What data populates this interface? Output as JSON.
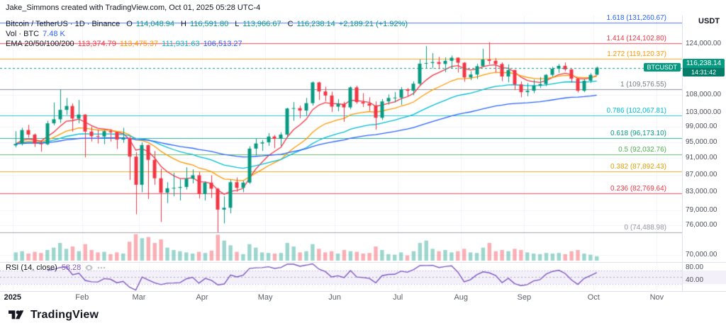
{
  "attribution": "Jake_Simmons created with TradingView.com, Oct 01, 2025 05:28 UTC-4",
  "header": {
    "symbol_title": "Bitcoin / TetherUS · 1D · Binance",
    "ohlc": {
      "o_label": "O",
      "o": "114,048.94",
      "h_label": "H",
      "h": "116,591.80",
      "l_label": "L",
      "l": "113,966.67",
      "c_label": "C",
      "c": "116,238.14"
    },
    "change": "+2,189.21 (+1.92%)",
    "volume_label": "Vol · BTC",
    "volume_value": "7.48 K",
    "ema_label": "EMA 20/50/100/200",
    "ema_values": [
      "113,374.79",
      "113,475.37",
      "111,931.63",
      "106,513.27"
    ]
  },
  "last_price": {
    "symbol_badge": "BTCUSDT",
    "price": "116,238.14",
    "countdown": "14:31:42",
    "value": 116238.14,
    "color": "#089981"
  },
  "price_axis": {
    "unit": "USDT",
    "ticks": [
      {
        "label": "124,000.00",
        "value": 124000
      },
      {
        "label": "108,000.00",
        "value": 108000
      },
      {
        "label": "103,000.00",
        "value": 103000
      },
      {
        "label": "99,000.00",
        "value": 99000
      },
      {
        "label": "95,000.00",
        "value": 95000
      },
      {
        "label": "91,000.00",
        "value": 91000
      },
      {
        "label": "87,000.00",
        "value": 87000
      },
      {
        "label": "83,000.00",
        "value": 83000
      },
      {
        "label": "79,000.00",
        "value": 79000
      },
      {
        "label": "76,000.00",
        "value": 76000
      },
      {
        "label": "70,000.00",
        "value": 70000
      }
    ]
  },
  "fib_levels": [
    {
      "label": "1.618 (131,260.67)",
      "value": 131260.67,
      "color": "#2962ff"
    },
    {
      "label": "1.414 (124,102.80)",
      "value": 124102.8,
      "color": "#f23645"
    },
    {
      "label": "1.272 (119,120.37)",
      "value": 119120.37,
      "color": "#ff9800"
    },
    {
      "label": "1 (109,576.55)",
      "value": 109576.55,
      "color": "#787b86"
    },
    {
      "label": "0.786 (102,067.81)",
      "value": 102067.81,
      "color": "#00bcd4"
    },
    {
      "label": "0.618 (96,173.10)",
      "value": 96173.1,
      "color": "#089981"
    },
    {
      "label": "0.5 (92,032.76)",
      "value": 92032.76,
      "color": "#4caf50"
    },
    {
      "label": "0.382 (87,892.43)",
      "value": 87892.43,
      "color": "#e3a008"
    },
    {
      "label": "0.236 (82,769.64)",
      "value": 82769.64,
      "color": "#f23645"
    },
    {
      "label": "0 (74,488.98)",
      "value": 74488.98,
      "color": "#9598a1"
    }
  ],
  "rsi": {
    "label": "RSI (14, close)",
    "value": "58.28",
    "color": "#7e57c2",
    "band": [
      30,
      70
    ],
    "axis_ticks": [
      {
        "label": "80.00",
        "value": 80
      },
      {
        "label": "40.00",
        "value": 40
      }
    ]
  },
  "time_axis": {
    "labels": [
      {
        "text": "2025",
        "slot": 2,
        "year": true
      },
      {
        "text": "Feb",
        "slot": 13
      },
      {
        "text": "Mar",
        "slot": 22
      },
      {
        "text": "Apr",
        "slot": 32
      },
      {
        "text": "May",
        "slot": 42
      },
      {
        "text": "Jun",
        "slot": 53
      },
      {
        "text": "Jul",
        "slot": 63
      },
      {
        "text": "Aug",
        "slot": 73
      },
      {
        "text": "Sep",
        "slot": 83
      },
      {
        "text": "Oct",
        "slot": 94
      },
      {
        "text": "Nov",
        "slot": 104
      }
    ]
  },
  "footer": {
    "brand": "TradingView"
  },
  "chart_data": {
    "type": "candlestick",
    "symbol": "BTCUSDT",
    "exchange": "Binance",
    "interval": "1D",
    "price_scale": "log",
    "price_range": [
      69000,
      133800
    ],
    "units": "thousand USDT per candle value; volume in K BTC",
    "total_slots": 108,
    "first_candle_slot": 2,
    "volume_max": 48,
    "bar_compression": 3,
    "up_color": "#089981",
    "down_color": "#f23645",
    "ema": {
      "periods": [
        20,
        50,
        100,
        200
      ],
      "colors": [
        "#f23645",
        "#ff9800",
        "#00bcd4",
        "#2962ff"
      ]
    },
    "rsi_period": 14,
    "candles": [
      [
        94.2,
        97.9,
        93.7,
        94.6,
        14
      ],
      [
        94.6,
        98.8,
        94.2,
        98.2,
        16
      ],
      [
        98.2,
        99.6,
        96.2,
        97.0,
        12
      ],
      [
        97.0,
        97.3,
        93.8,
        94.7,
        15
      ],
      [
        94.7,
        95.4,
        92.6,
        94.5,
        13
      ],
      [
        94.5,
        100.7,
        94.3,
        100.0,
        18
      ],
      [
        100.0,
        105.8,
        99.5,
        101.1,
        22
      ],
      [
        101.1,
        109.6,
        100.1,
        103.7,
        30
      ],
      [
        103.7,
        107.1,
        102.3,
        104.8,
        20
      ],
      [
        104.8,
        105.5,
        97.8,
        101.3,
        24
      ],
      [
        101.3,
        106.5,
        100.0,
        102.4,
        16
      ],
      [
        102.4,
        102.5,
        91.2,
        97.8,
        28
      ],
      [
        97.8,
        99.1,
        95.2,
        96.6,
        18
      ],
      [
        96.6,
        98.3,
        94.7,
        96.5,
        14
      ],
      [
        96.5,
        98.1,
        94.5,
        97.9,
        15
      ],
      [
        97.9,
        98.4,
        95.2,
        97.6,
        11
      ],
      [
        97.6,
        97.7,
        93.3,
        95.7,
        14
      ],
      [
        95.7,
        98.8,
        94.9,
        96.1,
        12
      ],
      [
        96.1,
        96.5,
        85.8,
        91.4,
        32
      ],
      [
        91.4,
        92.5,
        78.2,
        84.7,
        45
      ],
      [
        84.7,
        95.0,
        83.0,
        94.3,
        38
      ],
      [
        94.3,
        94.4,
        81.5,
        90.6,
        40
      ],
      [
        90.6,
        92.8,
        84.7,
        86.2,
        30
      ],
      [
        86.2,
        88.5,
        76.6,
        82.9,
        36
      ],
      [
        82.9,
        85.3,
        80.6,
        83.9,
        22
      ],
      [
        83.9,
        87.5,
        82.1,
        84.0,
        18
      ],
      [
        84.0,
        86.0,
        81.2,
        84.2,
        16
      ],
      [
        84.2,
        88.8,
        83.6,
        86.1,
        14
      ],
      [
        86.1,
        88.3,
        85.0,
        86.9,
        12
      ],
      [
        86.9,
        87.7,
        81.6,
        82.6,
        15
      ],
      [
        82.6,
        85.5,
        81.2,
        85.2,
        13
      ],
      [
        85.2,
        86.9,
        81.7,
        83.8,
        17
      ],
      [
        83.8,
        84.0,
        74.5,
        79.2,
        44
      ],
      [
        79.2,
        82.1,
        76.3,
        79.6,
        34
      ],
      [
        79.6,
        85.8,
        78.4,
        85.3,
        26
      ],
      [
        85.3,
        86.4,
        83.1,
        84.0,
        15
      ],
      [
        84.0,
        85.6,
        83.0,
        85.2,
        11
      ],
      [
        85.2,
        94.0,
        84.9,
        93.4,
        28
      ],
      [
        93.4,
        95.9,
        91.7,
        94.7,
        22
      ],
      [
        94.7,
        95.6,
        92.8,
        95.0,
        14
      ],
      [
        95.0,
        97.4,
        94.1,
        96.5,
        13
      ],
      [
        96.5,
        96.9,
        93.5,
        95.9,
        12
      ],
      [
        95.9,
        97.6,
        94.1,
        97.0,
        13
      ],
      [
        97.0,
        104.3,
        96.4,
        104.1,
        30
      ],
      [
        104.1,
        105.9,
        100.7,
        104.2,
        24
      ],
      [
        104.2,
        104.9,
        101.4,
        103.5,
        14
      ],
      [
        103.5,
        107.1,
        102.1,
        105.6,
        16
      ],
      [
        105.6,
        112.0,
        104.9,
        111.7,
        28
      ],
      [
        111.7,
        111.9,
        106.5,
        109.0,
        20
      ],
      [
        109.0,
        110.4,
        106.1,
        107.8,
        14
      ],
      [
        107.8,
        108.9,
        103.1,
        104.6,
        16
      ],
      [
        104.6,
        106.8,
        103.3,
        105.4,
        12
      ],
      [
        105.4,
        106.0,
        100.4,
        104.4,
        18
      ],
      [
        104.4,
        110.5,
        103.9,
        110.2,
        16
      ],
      [
        110.2,
        110.7,
        105.4,
        105.9,
        15
      ],
      [
        105.9,
        108.5,
        104.5,
        105.5,
        12
      ],
      [
        105.5,
        107.3,
        103.4,
        104.9,
        13
      ],
      [
        104.9,
        106.1,
        98.3,
        101.5,
        24
      ],
      [
        101.5,
        106.8,
        100.9,
        106.1,
        18
      ],
      [
        106.1,
        108.1,
        105.2,
        107.1,
        11
      ],
      [
        107.1,
        108.8,
        105.8,
        107.2,
        10
      ],
      [
        107.2,
        110.3,
        105.1,
        109.6,
        14
      ],
      [
        109.6,
        110.0,
        107.5,
        109.2,
        9
      ],
      [
        109.2,
        112.0,
        107.9,
        111.3,
        16
      ],
      [
        111.3,
        118.9,
        110.9,
        117.5,
        30
      ],
      [
        117.5,
        123.2,
        116.1,
        117.7,
        34
      ],
      [
        117.7,
        120.9,
        116.0,
        118.0,
        20
      ],
      [
        118.0,
        119.7,
        115.8,
        117.4,
        16
      ],
      [
        117.4,
        119.5,
        114.8,
        118.4,
        18
      ],
      [
        118.4,
        120.1,
        116.0,
        119.4,
        14
      ],
      [
        119.4,
        119.5,
        114.7,
        117.8,
        16
      ],
      [
        117.8,
        118.0,
        111.9,
        113.2,
        20
      ],
      [
        113.2,
        115.1,
        112.4,
        114.1,
        14
      ],
      [
        114.1,
        117.5,
        112.7,
        116.7,
        13
      ],
      [
        116.7,
        122.3,
        116.5,
        118.8,
        22
      ],
      [
        118.8,
        124.5,
        117.3,
        118.4,
        30
      ],
      [
        118.4,
        119.3,
        114.8,
        117.4,
        16
      ],
      [
        117.4,
        117.9,
        112.1,
        113.5,
        18
      ],
      [
        113.5,
        117.3,
        111.7,
        115.5,
        16
      ],
      [
        115.5,
        115.6,
        109.4,
        111.1,
        20
      ],
      [
        111.1,
        112.0,
        107.3,
        108.8,
        18
      ],
      [
        108.8,
        111.5,
        107.6,
        109.2,
        14
      ],
      [
        109.2,
        112.6,
        108.5,
        110.7,
        12
      ],
      [
        110.7,
        113.3,
        110.0,
        111.2,
        11
      ],
      [
        111.2,
        114.2,
        110.6,
        114.0,
        13
      ],
      [
        114.0,
        116.5,
        113.4,
        115.9,
        12
      ],
      [
        115.9,
        117.4,
        114.6,
        116.8,
        13
      ],
      [
        116.8,
        117.9,
        115.1,
        115.7,
        11
      ],
      [
        115.7,
        115.8,
        111.6,
        112.8,
        16
      ],
      [
        112.8,
        113.0,
        108.7,
        109.2,
        18
      ],
      [
        109.2,
        112.7,
        108.8,
        112.2,
        12
      ],
      [
        112.2,
        114.5,
        111.5,
        114.0,
        10
      ],
      [
        114.049,
        116.592,
        113.967,
        116.238,
        7.48
      ]
    ]
  }
}
